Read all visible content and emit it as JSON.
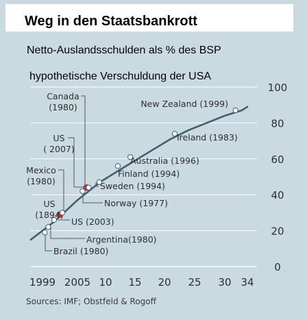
{
  "title": "Weg in den Staatsbankrott",
  "subtitle": "Netto-Auslandsschulden als % des BSP",
  "hypothetical_label": "hypothetische Verschuldung der USA",
  "source": "Sources: IMF; Obstfeld & Rogoff",
  "colors": {
    "background": "#c9dbe1",
    "curve": "#3d5f6e",
    "marker": "#ffffff",
    "highlight": "#e8232a",
    "title_box": "#ffffff"
  },
  "chart_data": {
    "type": "line",
    "title": "Weg in den Staatsbankrott",
    "subtitle": "Netto-Auslandsschulden als % des BSP",
    "xlabel": "",
    "ylabel": "",
    "x_ticks": [
      "1999",
      "2005",
      "10",
      "15",
      "20",
      "25",
      "30",
      "34"
    ],
    "y_ticks": [
      0,
      20,
      40,
      60,
      80,
      100
    ],
    "ylim": [
      0,
      100
    ],
    "grid": true,
    "series": [
      {
        "x": [
          1997,
          1999,
          2001,
          2003,
          2005,
          2007,
          2009,
          2012,
          2015,
          2018,
          2021,
          2024,
          2027,
          2030,
          2033,
          2034
        ],
        "y": [
          15,
          20,
          25,
          31,
          37,
          42,
          47,
          53,
          59,
          65,
          71,
          76,
          80,
          84,
          87,
          89
        ]
      }
    ],
    "annotations": [
      {
        "text": "Brazil (1980)",
        "x": 1999.4,
        "y": 19,
        "color": "white"
      },
      {
        "text": "Argentina(1980)",
        "x": 2000.0,
        "y": 22,
        "color": "white"
      },
      {
        "text": "US (2003)",
        "x": 2001.0,
        "y": 26,
        "color": "white"
      },
      {
        "text": "US\n(1894)",
        "x": 2002.0,
        "y": 29,
        "color": "red"
      },
      {
        "text": "Mexico\n(1980)",
        "x": 2002.4,
        "y": 30,
        "color": "white"
      },
      {
        "text": "Norway (1977)",
        "x": 2005.9,
        "y": 42,
        "color": "white"
      },
      {
        "text": "US\n( 2007)",
        "x": 2006.6,
        "y": 44,
        "color": "red"
      },
      {
        "text": "Canada\n(1980)",
        "x": 2007.0,
        "y": 44,
        "color": "white"
      },
      {
        "text": "Sweden (1994)",
        "x": 2008.9,
        "y": 47,
        "color": "white"
      },
      {
        "text": "Finland (1994)",
        "x": 2012.1,
        "y": 56,
        "color": "white"
      },
      {
        "text": "Australia (1996)",
        "x": 2014.2,
        "y": 61,
        "color": "white"
      },
      {
        "text": "Ireland (1983)",
        "x": 2021.7,
        "y": 74,
        "color": "white"
      },
      {
        "text": "New Zealand (1999)",
        "x": 2031.9,
        "y": 87,
        "color": "white"
      }
    ]
  }
}
